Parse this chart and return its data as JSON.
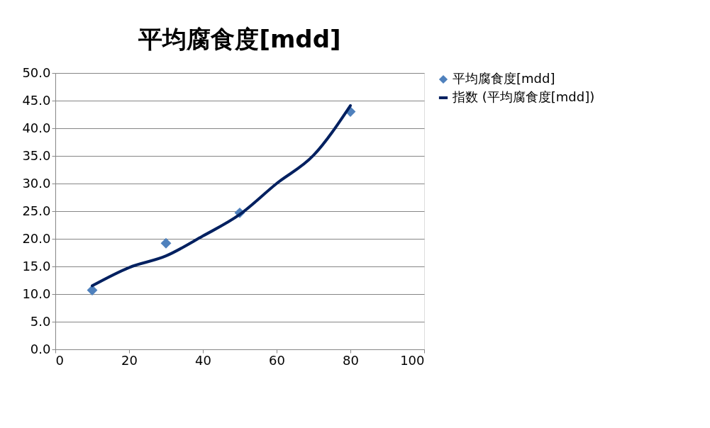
{
  "chart_data": {
    "type": "scatter",
    "title": "平均腐食度[mdd]",
    "x": [
      10,
      30,
      50,
      80
    ],
    "series": [
      {
        "name": "平均腐食度[mdd]",
        "color": "#4f81bd",
        "marker": "diamond",
        "values": [
          10.7,
          19.2,
          24.7,
          43.0
        ]
      },
      {
        "name": "指数 (平均腐食度[mdd])",
        "type": "line",
        "marker": "none",
        "color": "#002060",
        "x": [
          10,
          20,
          30,
          40,
          50,
          60,
          70,
          80
        ],
        "values": [
          11.5,
          14.8,
          16.9,
          20.5,
          24.4,
          30.0,
          35.1,
          44.1
        ]
      }
    ],
    "xlim": [
      0,
      100
    ],
    "xticks": [
      0,
      20,
      40,
      60,
      80,
      100
    ],
    "ylim": [
      0,
      50
    ],
    "yticks": [
      {
        "value": 0,
        "label": "0.0"
      },
      {
        "value": 5,
        "label": "5.0"
      },
      {
        "value": 10,
        "label": "10.0"
      },
      {
        "value": 15,
        "label": "15.0"
      },
      {
        "value": 20,
        "label": "20.0"
      },
      {
        "value": 25,
        "label": "25.0"
      },
      {
        "value": 30,
        "label": "30.0"
      },
      {
        "value": 35,
        "label": "35.0"
      },
      {
        "value": 40,
        "label": "40.0"
      },
      {
        "value": 45,
        "label": "45.0"
      },
      {
        "value": 50,
        "label": "50.0"
      }
    ],
    "grid": "y",
    "legend": "right"
  }
}
